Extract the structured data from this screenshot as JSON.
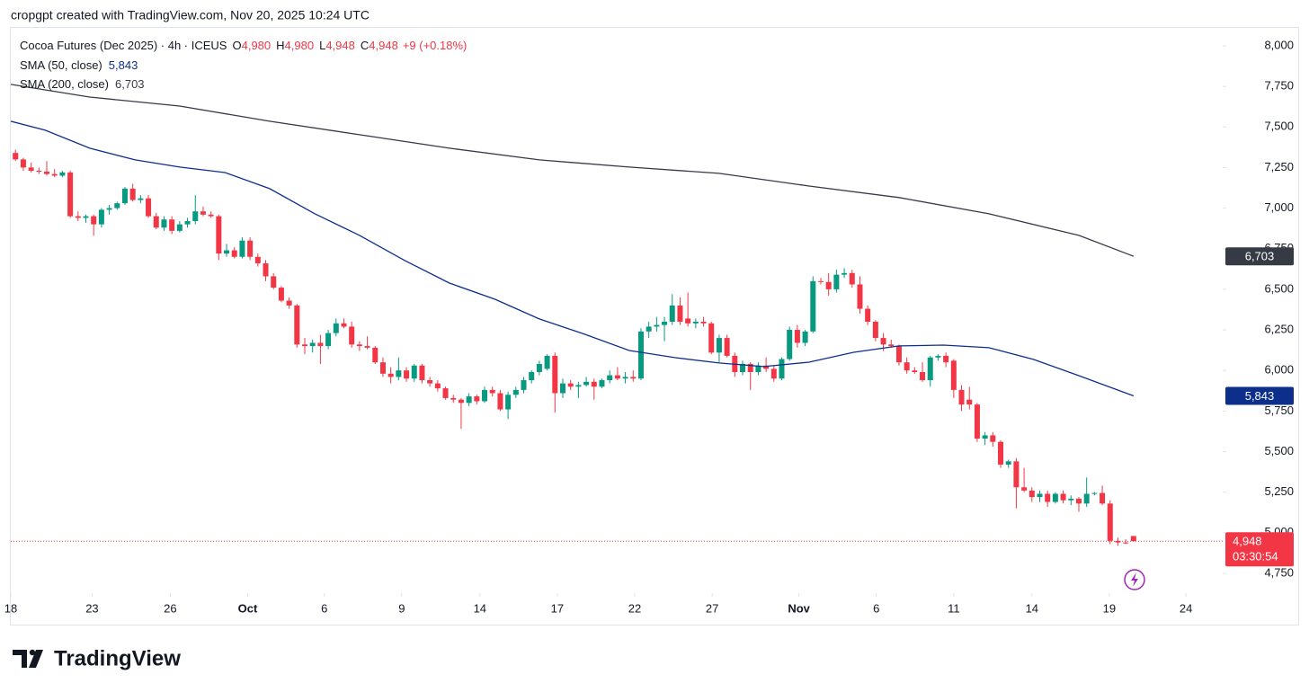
{
  "header": "cropgpt created with TradingView.com, Nov 20, 2025 10:24 UTC",
  "footer_brand": "TradingView",
  "chart_data": {
    "type": "candlestick",
    "title": "Cocoa Futures (Dec 2025) · 4h · ICEUS",
    "legend_ohlc": [
      {
        "key": "O",
        "value": 4980,
        "label": "4,980"
      },
      {
        "key": "H",
        "value": 4980,
        "label": "4,980"
      },
      {
        "key": "L",
        "value": 4948,
        "label": "4,948"
      },
      {
        "key": "C",
        "value": 4948,
        "label": "4,948"
      }
    ],
    "change": "+9 (+0.18%)",
    "up_color": "#089981",
    "down_color": "#f23645",
    "ohlc": [
      [
        7340,
        7360,
        7290,
        7300
      ],
      [
        7300,
        7310,
        7230,
        7250
      ],
      [
        7250,
        7280,
        7220,
        7230
      ],
      [
        7230,
        7250,
        7210,
        7225
      ],
      [
        7225,
        7290,
        7200,
        7210
      ],
      [
        7210,
        7240,
        7190,
        7200
      ],
      [
        7200,
        7230,
        7190,
        7220
      ],
      [
        7220,
        7230,
        6940,
        6950
      ],
      [
        6950,
        6980,
        6920,
        6940
      ],
      [
        6940,
        6960,
        6910,
        6950
      ],
      [
        6950,
        6960,
        6830,
        6900
      ],
      [
        6900,
        7000,
        6880,
        6990
      ],
      [
        6990,
        7020,
        6960,
        7000
      ],
      [
        7000,
        7040,
        6990,
        7030
      ],
      [
        7030,
        7130,
        7020,
        7120
      ],
      [
        7120,
        7150,
        7040,
        7050
      ],
      [
        7050,
        7080,
        7030,
        7060
      ],
      [
        7060,
        7080,
        6940,
        6950
      ],
      [
        6950,
        6970,
        6870,
        6880
      ],
      [
        6880,
        6950,
        6860,
        6930
      ],
      [
        6930,
        6950,
        6840,
        6860
      ],
      [
        6860,
        6920,
        6850,
        6900
      ],
      [
        6900,
        6940,
        6880,
        6920
      ],
      [
        6920,
        7080,
        6900,
        6980
      ],
      [
        6980,
        7010,
        6950,
        6960
      ],
      [
        6960,
        6980,
        6940,
        6950
      ],
      [
        6950,
        6960,
        6680,
        6720
      ],
      [
        6720,
        6780,
        6700,
        6740
      ],
      [
        6740,
        6760,
        6690,
        6700
      ],
      [
        6700,
        6820,
        6690,
        6800
      ],
      [
        6800,
        6820,
        6680,
        6700
      ],
      [
        6700,
        6720,
        6640,
        6660
      ],
      [
        6660,
        6680,
        6550,
        6580
      ],
      [
        6580,
        6600,
        6500,
        6510
      ],
      [
        6510,
        6520,
        6420,
        6430
      ],
      [
        6430,
        6450,
        6380,
        6400
      ],
      [
        6400,
        6410,
        6140,
        6160
      ],
      [
        6160,
        6200,
        6100,
        6150
      ],
      [
        6150,
        6190,
        6110,
        6170
      ],
      [
        6170,
        6220,
        6040,
        6150
      ],
      [
        6150,
        6250,
        6130,
        6230
      ],
      [
        6230,
        6320,
        6210,
        6290
      ],
      [
        6290,
        6320,
        6260,
        6270
      ],
      [
        6270,
        6300,
        6140,
        6160
      ],
      [
        6160,
        6180,
        6120,
        6150
      ],
      [
        6150,
        6210,
        6130,
        6140
      ],
      [
        6140,
        6150,
        6040,
        6050
      ],
      [
        6050,
        6080,
        5960,
        5980
      ],
      [
        5980,
        6020,
        5920,
        5960
      ],
      [
        5960,
        6080,
        5940,
        6000
      ],
      [
        6000,
        6020,
        5930,
        5950
      ],
      [
        5950,
        6040,
        5930,
        6030
      ],
      [
        6030,
        6040,
        5920,
        5940
      ],
      [
        5940,
        5960,
        5900,
        5920
      ],
      [
        5920,
        5940,
        5870,
        5890
      ],
      [
        5890,
        5900,
        5820,
        5830
      ],
      [
        5830,
        5850,
        5800,
        5820
      ],
      [
        5820,
        5830,
        5640,
        5800
      ],
      [
        5800,
        5860,
        5780,
        5840
      ],
      [
        5840,
        5850,
        5790,
        5810
      ],
      [
        5810,
        5900,
        5800,
        5880
      ],
      [
        5880,
        5900,
        5840,
        5860
      ],
      [
        5860,
        5880,
        5750,
        5760
      ],
      [
        5760,
        5870,
        5700,
        5850
      ],
      [
        5850,
        5900,
        5830,
        5880
      ],
      [
        5880,
        5960,
        5860,
        5940
      ],
      [
        5940,
        6000,
        5920,
        5990
      ],
      [
        5990,
        6060,
        5970,
        6040
      ],
      [
        6010,
        6100,
        6000,
        6090
      ],
      [
        6090,
        6110,
        5740,
        5860
      ],
      [
        5860,
        5950,
        5830,
        5920
      ],
      [
        5920,
        5940,
        5880,
        5900
      ],
      [
        5900,
        5930,
        5830,
        5910
      ],
      [
        5910,
        5960,
        5900,
        5930
      ],
      [
        5930,
        5950,
        5820,
        5900
      ],
      [
        5900,
        5950,
        5890,
        5940
      ],
      [
        5940,
        6000,
        5920,
        5970
      ],
      [
        5970,
        6020,
        5940,
        5950
      ],
      [
        5950,
        5990,
        5920,
        5960
      ],
      [
        5960,
        6000,
        5930,
        5950
      ],
      [
        5950,
        6260,
        5940,
        6240
      ],
      [
        6240,
        6300,
        6200,
        6270
      ],
      [
        6270,
        6330,
        6240,
        6280
      ],
      [
        6280,
        6330,
        6180,
        6300
      ],
      [
        6300,
        6470,
        6280,
        6400
      ],
      [
        6400,
        6450,
        6280,
        6300
      ],
      [
        6320,
        6480,
        6270,
        6290
      ],
      [
        6290,
        6320,
        6260,
        6300
      ],
      [
        6300,
        6330,
        6270,
        6290
      ],
      [
        6290,
        6300,
        6100,
        6110
      ],
      [
        6110,
        6220,
        6050,
        6200
      ],
      [
        6200,
        6220,
        6080,
        6090
      ],
      [
        6090,
        6110,
        5960,
        5990
      ],
      [
        5990,
        6060,
        5970,
        6040
      ],
      [
        6040,
        6050,
        5880,
        5990
      ],
      [
        5990,
        6050,
        5970,
        6030
      ],
      [
        6030,
        6080,
        5990,
        6010
      ],
      [
        6010,
        6030,
        5930,
        5950
      ],
      [
        5950,
        6080,
        5940,
        6070
      ],
      [
        6070,
        6270,
        6060,
        6250
      ],
      [
        6250,
        6280,
        6140,
        6170
      ],
      [
        6170,
        6250,
        6150,
        6240
      ],
      [
        6240,
        6580,
        6230,
        6550
      ],
      [
        6550,
        6570,
        6530,
        6545
      ],
      [
        6545,
        6600,
        6460,
        6500
      ],
      [
        6500,
        6620,
        6480,
        6590
      ],
      [
        6590,
        6630,
        6570,
        6600
      ],
      [
        6600,
        6620,
        6510,
        6530
      ],
      [
        6530,
        6580,
        6350,
        6380
      ],
      [
        6380,
        6400,
        6280,
        6300
      ],
      [
        6300,
        6310,
        6180,
        6200
      ],
      [
        6200,
        6230,
        6120,
        6160
      ],
      [
        6160,
        6190,
        6140,
        6150
      ],
      [
        6150,
        6160,
        6030,
        6050
      ],
      [
        6050,
        6080,
        5980,
        6000
      ],
      [
        6000,
        6020,
        5980,
        5990
      ],
      [
        5990,
        6050,
        5930,
        5940
      ],
      [
        5940,
        6090,
        5900,
        6080
      ],
      [
        6080,
        6100,
        6060,
        6090
      ],
      [
        6090,
        6110,
        6020,
        6050
      ],
      [
        6060,
        6070,
        5830,
        5880
      ],
      [
        5880,
        5910,
        5750,
        5790
      ],
      [
        5820,
        5900,
        5760,
        5790
      ],
      [
        5790,
        5800,
        5560,
        5580
      ],
      [
        5580,
        5620,
        5540,
        5600
      ],
      [
        5600,
        5620,
        5530,
        5560
      ],
      [
        5560,
        5570,
        5400,
        5420
      ],
      [
        5420,
        5450,
        5400,
        5440
      ],
      [
        5440,
        5460,
        5150,
        5280
      ],
      [
        5280,
        5400,
        5250,
        5260
      ],
      [
        5260,
        5280,
        5190,
        5220
      ],
      [
        5220,
        5260,
        5190,
        5240
      ],
      [
        5240,
        5260,
        5160,
        5190
      ],
      [
        5190,
        5250,
        5180,
        5240
      ],
      [
        5240,
        5260,
        5180,
        5200
      ],
      [
        5200,
        5230,
        5170,
        5210
      ],
      [
        5210,
        5220,
        5130,
        5180
      ],
      [
        5180,
        5340,
        5160,
        5240
      ],
      [
        5240,
        5250,
        5230,
        5245
      ],
      [
        5245,
        5290,
        5170,
        5180
      ],
      [
        5180,
        5200,
        4930,
        4950
      ],
      [
        4950,
        4970,
        4920,
        4940
      ],
      [
        4940,
        4960,
        4930,
        4939
      ],
      [
        4980,
        4980,
        4948,
        4948
      ]
    ],
    "sma": [
      {
        "name": "SMA (50, close)",
        "color": "#0d2f8c",
        "last_label": {
          "value": 5843,
          "label": "5,843"
        },
        "x": [
          -0.6,
          3.8,
          9.5,
          15.3,
          21,
          26.8,
          32.5,
          38.3,
          44,
          49.8,
          55.5,
          61.3,
          67,
          72.8,
          78.5,
          84.3,
          90,
          95.7,
          101.5,
          107.2,
          113,
          118.7,
          124.5,
          130.2,
          136,
          143
        ],
        "values": [
          7535,
          7480,
          7369,
          7297,
          7253,
          7219,
          7120,
          6965,
          6832,
          6677,
          6538,
          6439,
          6317,
          6223,
          6123,
          6079,
          6046,
          6024,
          6051,
          6112,
          6151,
          6156,
          6140,
          6068,
          5968,
          5843
        ]
      },
      {
        "name": "SMA (200, close)",
        "color": "#363a45",
        "last_label": {
          "value": 6703,
          "label": "6,703"
        },
        "x": [
          -0.6,
          9.5,
          21,
          32.5,
          44,
          55.5,
          67,
          78.5,
          90,
          101.5,
          113,
          124.5,
          136,
          143
        ],
        "values": [
          7762,
          7684,
          7629,
          7535,
          7452,
          7369,
          7297,
          7253,
          7214,
          7136,
          7065,
          6965,
          6832,
          6703
        ]
      }
    ],
    "last_price": {
      "value": 4948,
      "label": "4,948"
    },
    "countdown": "03:30:54",
    "xlim": [
      -0.6,
      154.4
    ],
    "xticks": [
      {
        "value": -0.6,
        "label": "18"
      },
      {
        "value": 9.8,
        "label": "23"
      },
      {
        "value": 19.8,
        "label": "26"
      },
      {
        "value": 29.7,
        "label": "Oct"
      },
      {
        "value": 39.5,
        "label": "6"
      },
      {
        "value": 49.4,
        "label": "9"
      },
      {
        "value": 59.4,
        "label": "14"
      },
      {
        "value": 69.3,
        "label": "17"
      },
      {
        "value": 79.2,
        "label": "22"
      },
      {
        "value": 89.1,
        "label": "27"
      },
      {
        "value": 100.2,
        "label": "Nov"
      },
      {
        "value": 110.1,
        "label": "6"
      },
      {
        "value": 120,
        "label": "11"
      },
      {
        "value": 130,
        "label": "14"
      },
      {
        "value": 139.9,
        "label": "19"
      },
      {
        "value": 149.7,
        "label": "24"
      }
    ],
    "ylim": [
      4628,
      8116
    ],
    "yticks": [
      {
        "value": 4750,
        "label": "4,750"
      },
      {
        "value": 5000,
        "label": "5,000"
      },
      {
        "value": 5250,
        "label": "5,250"
      },
      {
        "value": 5500,
        "label": "5,500"
      },
      {
        "value": 5750,
        "label": "5,750"
      },
      {
        "value": 6000,
        "label": "6,000"
      },
      {
        "value": 6250,
        "label": "6,250"
      },
      {
        "value": 6500,
        "label": "6,500"
      },
      {
        "value": 6750,
        "label": "6,750"
      },
      {
        "value": 7000,
        "label": "7,000"
      },
      {
        "value": 7250,
        "label": "7,250"
      },
      {
        "value": 7500,
        "label": "7,500"
      },
      {
        "value": 7750,
        "label": "7,750"
      },
      {
        "value": 8000,
        "label": "8,000"
      }
    ]
  }
}
